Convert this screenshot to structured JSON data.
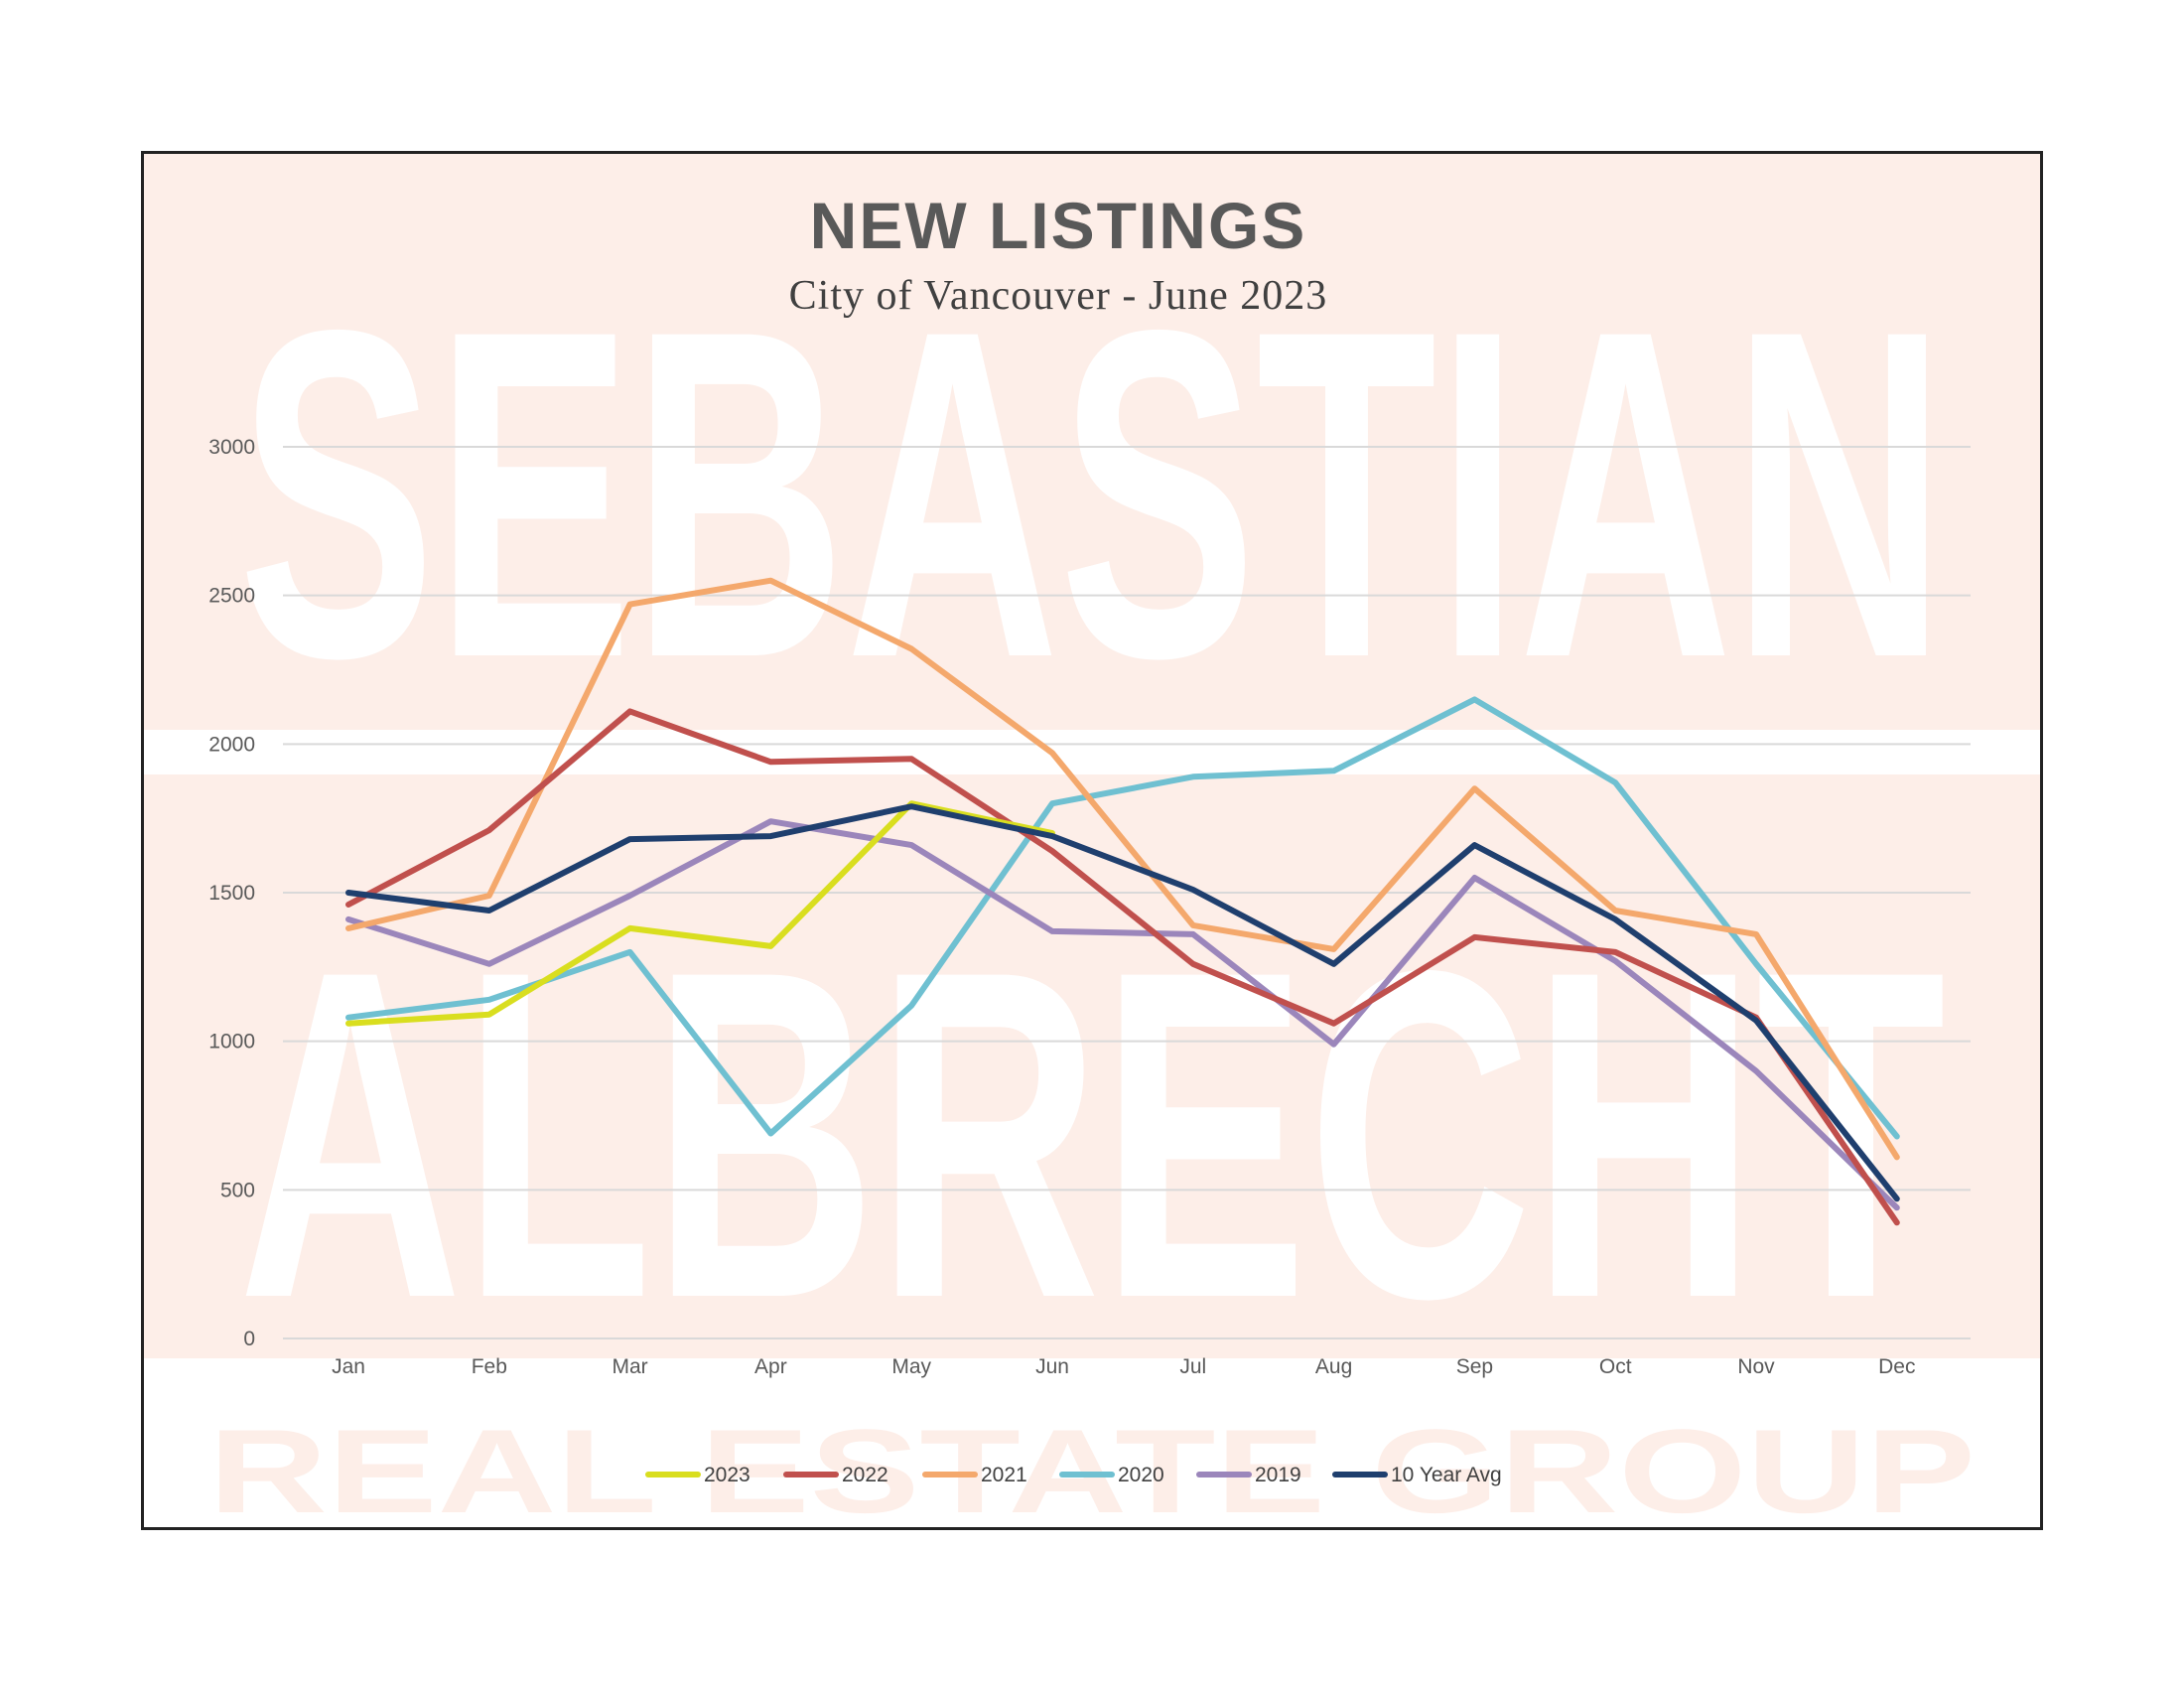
{
  "watermark": {
    "line1": "SEBASTIAN",
    "line2": "ALBRECHT",
    "line3": "REAL ESTATE GROUP"
  },
  "colors": {
    "background_band": "#fdeee8",
    "grid": "#d9d9d9",
    "2023": "#d9de1f",
    "2022": "#c0504d",
    "2021": "#f4a86c",
    "2020": "#6fc0d1",
    "2019": "#9b86bb",
    "10 Year Avg": "#1f3f6e"
  },
  "chart_data": {
    "type": "line",
    "title": "NEW LISTINGS",
    "subtitle": "City of Vancouver - June 2023",
    "categories": [
      "Jan",
      "Feb",
      "Mar",
      "Apr",
      "May",
      "Jun",
      "Jul",
      "Aug",
      "Sep",
      "Oct",
      "Nov",
      "Dec"
    ],
    "ylim": [
      0,
      3000
    ],
    "yticks": [
      0,
      500,
      1000,
      1500,
      2000,
      2500,
      3000
    ],
    "grid": true,
    "legend_position": "bottom",
    "series": [
      {
        "name": "2023",
        "values": [
          1060,
          1090,
          1380,
          1320,
          1800,
          1700,
          null,
          null,
          null,
          null,
          null,
          null
        ]
      },
      {
        "name": "2022",
        "values": [
          1460,
          1710,
          2110,
          1940,
          1950,
          1640,
          1260,
          1060,
          1350,
          1300,
          1080,
          390
        ]
      },
      {
        "name": "2021",
        "values": [
          1380,
          1490,
          2470,
          2550,
          2320,
          1970,
          1390,
          1310,
          1850,
          1440,
          1360,
          610
        ]
      },
      {
        "name": "2020",
        "values": [
          1080,
          1140,
          1300,
          690,
          1120,
          1800,
          1890,
          1910,
          2150,
          1870,
          1260,
          680
        ]
      },
      {
        "name": "2019",
        "values": [
          1410,
          1260,
          1490,
          1740,
          1660,
          1370,
          1360,
          990,
          1550,
          1270,
          900,
          440
        ]
      },
      {
        "name": "10 Year Avg",
        "values": [
          1500,
          1440,
          1680,
          1690,
          1790,
          1690,
          1510,
          1260,
          1660,
          1410,
          1070,
          470
        ]
      }
    ]
  }
}
